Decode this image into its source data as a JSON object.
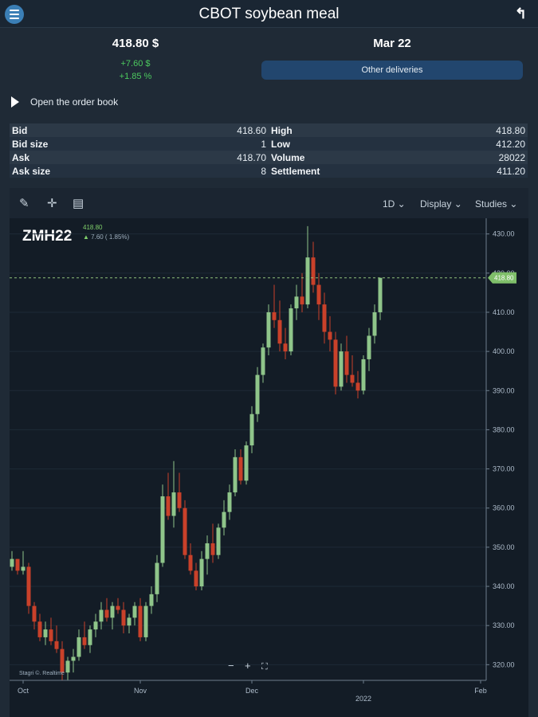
{
  "header": {
    "title": "CBOT soybean meal",
    "menu_icon": "hamburger-menu-icon",
    "back_icon": "return-arrow-icon"
  },
  "summary": {
    "price": "418.80 $",
    "change_abs": "+7.60 $",
    "change_pct": "+1.85 %",
    "delivery": "Mar 22",
    "other_deliveries": "Other deliveries"
  },
  "order_book": {
    "label": "Open the order book"
  },
  "quotes": [
    {
      "left_label": "Bid",
      "left_value": "418.60",
      "right_label": "High",
      "right_value": "418.80"
    },
    {
      "left_label": "Bid size",
      "left_value": "1",
      "right_label": "Low",
      "right_value": "412.20"
    },
    {
      "left_label": "Ask",
      "left_value": "418.70",
      "right_label": "Volume",
      "right_value": "28022"
    },
    {
      "left_label": "Ask size",
      "left_value": "8",
      "right_label": "Settlement",
      "right_value": "411.20"
    }
  ],
  "chart_toolbar": {
    "interval": "1D",
    "display": "Display",
    "studies": "Studies"
  },
  "chart_zoom": {
    "minus": "−",
    "plus": "+",
    "fit": "⛶"
  },
  "colors": {
    "up": "#8fc58a",
    "down": "#c9412a",
    "accent_green": "#4cc95e",
    "price_tag": "#7fbf6a"
  },
  "chart_data": {
    "type": "candlestick",
    "symbol": "ZMH22",
    "last": "418.80",
    "change": "7.60 ( 1.85%)",
    "price_tag": "418.80",
    "credit": "Stagri ©. Realtime",
    "y_ticks": [
      "430.00",
      "420.00",
      "410.00",
      "400.00",
      "390.00",
      "380.00",
      "370.00",
      "360.00",
      "350.00",
      "340.00",
      "330.00",
      "320.00"
    ],
    "ylim": [
      316,
      434
    ],
    "x_labels": [
      {
        "label": "Oct",
        "index": 2
      },
      {
        "label": "Nov",
        "index": 23
      },
      {
        "label": "Dec",
        "index": 43
      },
      {
        "label": "2022",
        "index": 63
      },
      {
        "label": "Feb",
        "index": 84
      }
    ],
    "last_price": 418.8,
    "candles": [
      [
        345,
        349,
        344,
        347
      ],
      [
        347,
        347,
        343,
        344
      ],
      [
        344,
        349,
        343,
        345
      ],
      [
        345,
        346,
        333,
        335
      ],
      [
        335,
        336,
        329,
        331
      ],
      [
        331,
        333,
        326,
        327
      ],
      [
        327,
        331,
        325,
        329
      ],
      [
        329,
        332,
        325,
        326
      ],
      [
        326,
        330,
        323,
        324
      ],
      [
        324,
        326,
        316,
        318
      ],
      [
        318,
        322,
        316,
        321
      ],
      [
        321,
        324,
        318,
        322
      ],
      [
        322,
        329,
        321,
        327
      ],
      [
        327,
        331,
        324,
        325
      ],
      [
        325,
        330,
        323,
        329
      ],
      [
        329,
        333,
        327,
        331
      ],
      [
        331,
        336,
        329,
        334
      ],
      [
        334,
        337,
        331,
        332
      ],
      [
        332,
        336,
        329,
        335
      ],
      [
        335,
        337,
        333,
        334
      ],
      [
        334,
        336,
        328,
        330
      ],
      [
        330,
        333,
        328,
        332
      ],
      [
        332,
        336,
        330,
        335
      ],
      [
        335,
        337,
        326,
        327
      ],
      [
        327,
        336,
        326,
        335
      ],
      [
        335,
        340,
        333,
        338
      ],
      [
        338,
        348,
        336,
        346
      ],
      [
        346,
        366,
        345,
        363
      ],
      [
        363,
        369,
        357,
        358
      ],
      [
        358,
        372,
        355,
        364
      ],
      [
        364,
        369,
        359,
        360
      ],
      [
        360,
        362,
        347,
        348
      ],
      [
        348,
        351,
        343,
        344
      ],
      [
        344,
        346,
        339,
        340
      ],
      [
        340,
        349,
        339,
        347
      ],
      [
        347,
        353,
        343,
        351
      ],
      [
        351,
        356,
        346,
        348
      ],
      [
        348,
        356,
        347,
        355
      ],
      [
        355,
        362,
        353,
        359
      ],
      [
        359,
        366,
        357,
        364
      ],
      [
        364,
        375,
        363,
        373
      ],
      [
        373,
        375,
        366,
        367
      ],
      [
        367,
        377,
        366,
        376
      ],
      [
        376,
        386,
        374,
        384
      ],
      [
        384,
        396,
        382,
        394
      ],
      [
        394,
        402,
        392,
        401
      ],
      [
        401,
        412,
        399,
        410
      ],
      [
        410,
        417,
        406,
        408
      ],
      [
        408,
        413,
        400,
        402
      ],
      [
        402,
        406,
        398,
        400
      ],
      [
        400,
        412,
        399,
        411
      ],
      [
        411,
        417,
        408,
        414
      ],
      [
        414,
        420,
        410,
        412
      ],
      [
        412,
        432,
        411,
        424
      ],
      [
        424,
        428,
        415,
        417
      ],
      [
        417,
        420,
        408,
        412
      ],
      [
        412,
        415,
        402,
        405
      ],
      [
        405,
        409,
        400,
        403
      ],
      [
        403,
        405,
        389,
        391
      ],
      [
        391,
        402,
        390,
        400
      ],
      [
        400,
        404,
        392,
        394
      ],
      [
        394,
        399,
        391,
        392
      ],
      [
        392,
        395,
        388,
        390
      ],
      [
        390,
        399,
        389,
        398
      ],
      [
        398,
        406,
        395,
        404
      ],
      [
        404,
        412,
        402,
        410
      ],
      [
        410,
        418.8,
        408,
        418.8
      ]
    ]
  }
}
